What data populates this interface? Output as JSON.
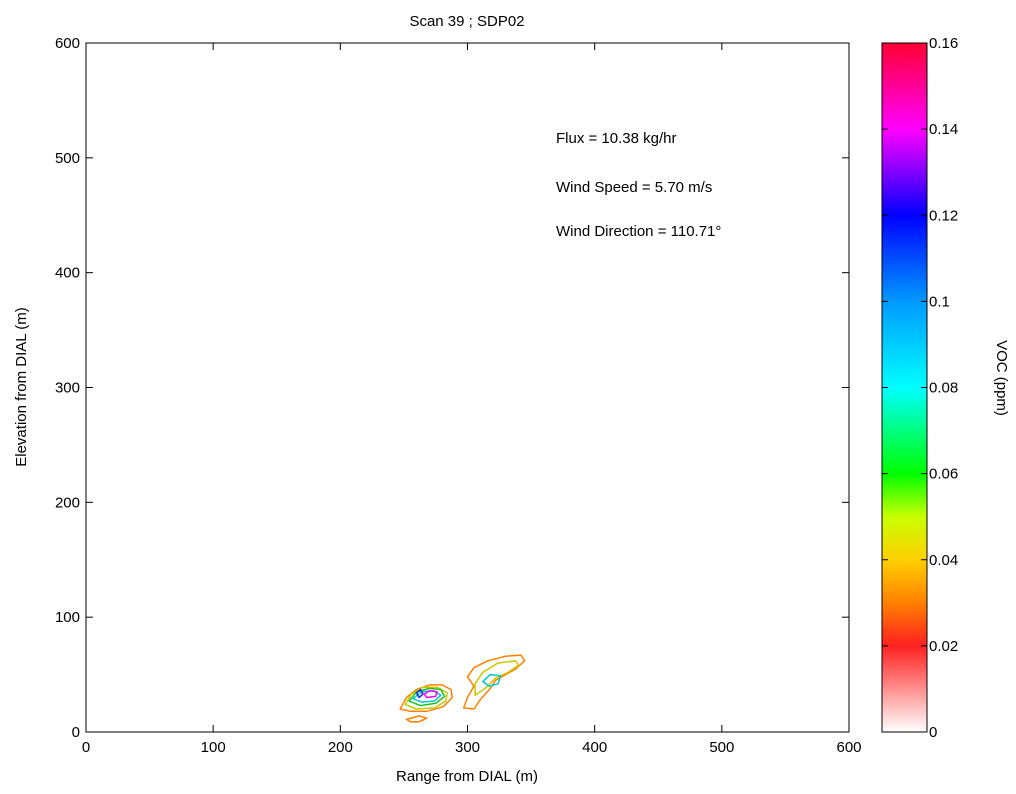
{
  "chart_data": {
    "type": "contour",
    "title": "Scan 39 ; SDP02",
    "xlabel": "Range from DIAL (m)",
    "ylabel": "Elevation from DIAL (m)",
    "xlim": [
      0,
      600
    ],
    "ylim": [
      0,
      600
    ],
    "xticks": [
      0,
      100,
      200,
      300,
      400,
      500,
      600
    ],
    "yticks": [
      0,
      100,
      200,
      300,
      400,
      500,
      600
    ],
    "grid": false,
    "annotations": [
      "Flux = 10.38 kg/hr",
      "Wind Speed = 5.70 m/s",
      "Wind Direction = 110.71°"
    ],
    "colorbar": {
      "label": "VOC (ppm)",
      "range": [
        0,
        0.16
      ],
      "ticks": [
        "0",
        "0.02",
        "0.04",
        "0.06",
        "0.08",
        "0.1",
        "0.12",
        "0.14",
        "0.16"
      ],
      "colormap": [
        {
          "value": 0.0,
          "color": "#ffffff"
        },
        {
          "value": 0.02,
          "color": "#ff2020"
        },
        {
          "value": 0.03,
          "color": "#ff8000"
        },
        {
          "value": 0.04,
          "color": "#ffd000"
        },
        {
          "value": 0.05,
          "color": "#c8ff00"
        },
        {
          "value": 0.06,
          "color": "#00ff00"
        },
        {
          "value": 0.08,
          "color": "#00ffff"
        },
        {
          "value": 0.1,
          "color": "#0099ff"
        },
        {
          "value": 0.12,
          "color": "#0000ff"
        },
        {
          "value": 0.13,
          "color": "#8000ff"
        },
        {
          "value": 0.14,
          "color": "#ff00ff"
        },
        {
          "value": 0.16,
          "color": "#ff0033"
        }
      ]
    },
    "contours": [
      {
        "level": 0.03,
        "color": "#ff8000",
        "points": [
          [
            247,
            20
          ],
          [
            252,
            30
          ],
          [
            260,
            37
          ],
          [
            270,
            41
          ],
          [
            280,
            41
          ],
          [
            287,
            37
          ],
          [
            288,
            30
          ],
          [
            281,
            22
          ],
          [
            268,
            18
          ],
          [
            255,
            18
          ]
        ]
      },
      {
        "level": 0.05,
        "color": "#c8c800",
        "points": [
          [
            251,
            24
          ],
          [
            256,
            33
          ],
          [
            265,
            39
          ],
          [
            276,
            39
          ],
          [
            284,
            34
          ],
          [
            283,
            27
          ],
          [
            274,
            21
          ],
          [
            260,
            20
          ]
        ]
      },
      {
        "level": 0.06,
        "color": "#20c020",
        "points": [
          [
            254,
            27
          ],
          [
            260,
            35
          ],
          [
            270,
            38
          ],
          [
            279,
            37
          ],
          [
            282,
            31
          ],
          [
            275,
            25
          ],
          [
            263,
            23
          ]
        ]
      },
      {
        "level": 0.08,
        "color": "#00c8c8",
        "points": [
          [
            257,
            29
          ],
          [
            264,
            35
          ],
          [
            273,
            36
          ],
          [
            279,
            32
          ],
          [
            274,
            27
          ],
          [
            264,
            26
          ]
        ]
      },
      {
        "level": 0.12,
        "color": "#2020ff",
        "points": [
          [
            260,
            34
          ],
          [
            263,
            37
          ],
          [
            265,
            33
          ],
          [
            262,
            30
          ]
        ]
      },
      {
        "level": 0.14,
        "color": "#ff00ff",
        "points": [
          [
            266,
            33
          ],
          [
            270,
            36
          ],
          [
            276,
            35
          ],
          [
            275,
            31
          ],
          [
            268,
            30
          ]
        ]
      },
      {
        "level": 0.03,
        "color": "#ff8000",
        "points": [
          [
            252,
            11
          ],
          [
            262,
            14
          ],
          [
            268,
            12
          ],
          [
            262,
            9
          ],
          [
            255,
            9
          ]
        ]
      },
      {
        "level": 0.03,
        "color": "#ff8000",
        "points": [
          [
            305,
            20
          ],
          [
            310,
            28
          ],
          [
            318,
            38
          ],
          [
            322,
            45
          ],
          [
            330,
            50
          ],
          [
            338,
            55
          ],
          [
            345,
            62
          ],
          [
            342,
            67
          ],
          [
            330,
            66
          ],
          [
            316,
            62
          ],
          [
            305,
            56
          ],
          [
            300,
            48
          ],
          [
            305,
            40
          ],
          [
            300,
            30
          ],
          [
            297,
            21
          ]
        ]
      },
      {
        "level": 0.05,
        "color": "#c8c800",
        "points": [
          [
            306,
            42
          ],
          [
            312,
            52
          ],
          [
            324,
            60
          ],
          [
            338,
            62
          ],
          [
            340,
            58
          ],
          [
            332,
            52
          ],
          [
            322,
            47
          ],
          [
            314,
            38
          ],
          [
            306,
            32
          ]
        ]
      },
      {
        "level": 0.08,
        "color": "#00c8c8",
        "points": [
          [
            312,
            44
          ],
          [
            318,
            50
          ],
          [
            326,
            49
          ],
          [
            324,
            42
          ],
          [
            317,
            40
          ]
        ]
      }
    ]
  }
}
